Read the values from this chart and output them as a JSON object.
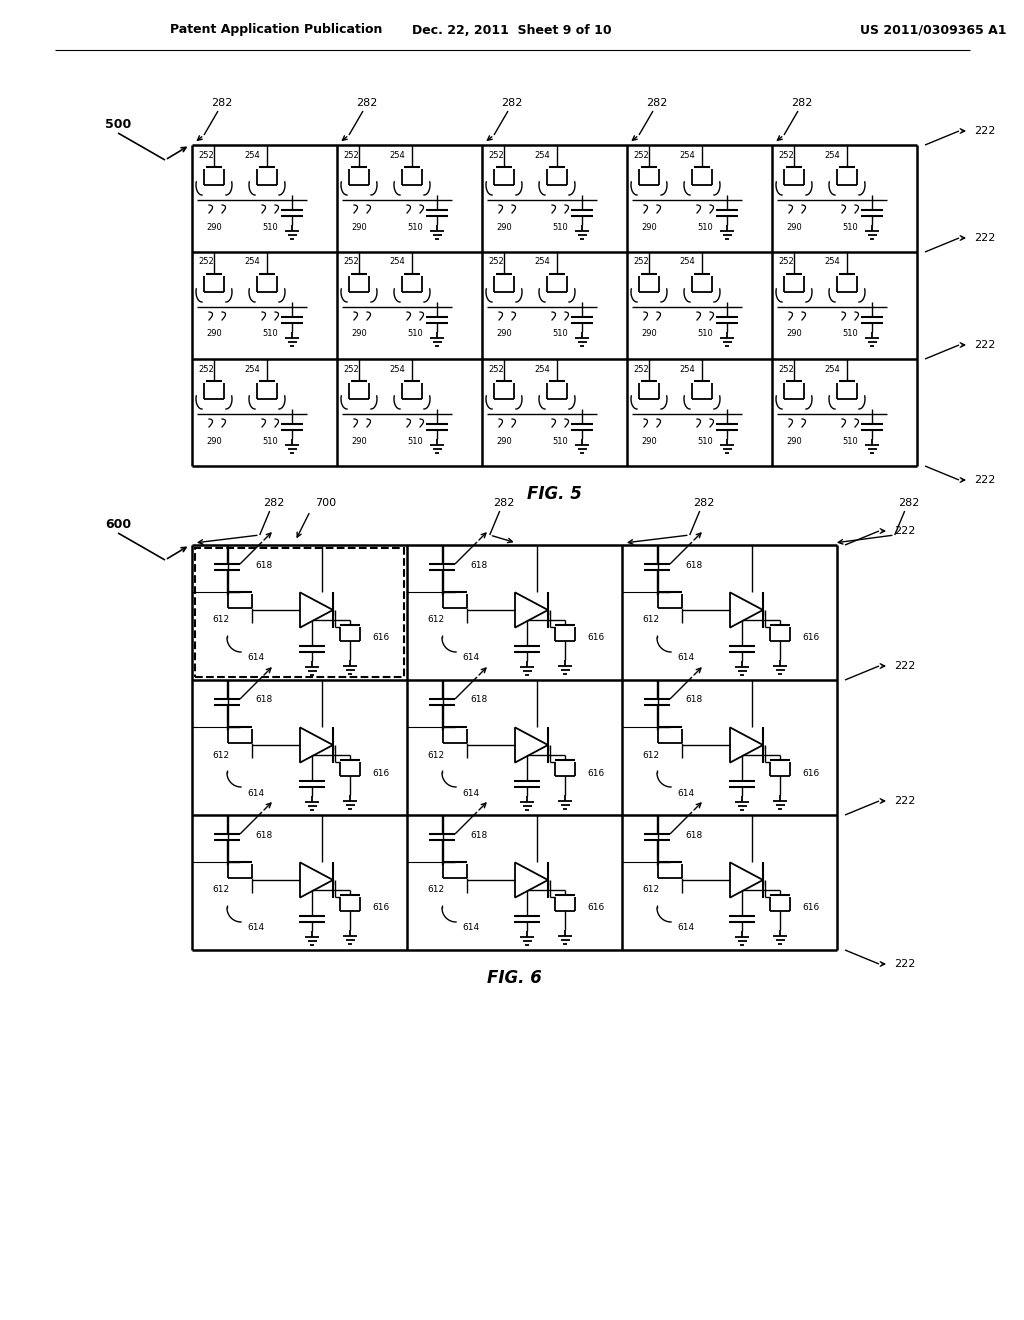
{
  "bg_color": "#ffffff",
  "line_color": "#000000",
  "header_left": "Patent Application Publication",
  "header_mid": "Dec. 22, 2011  Sheet 9 of 10",
  "header_right": "US 2011/0309365 A1",
  "fig5_label": "FIG. 5",
  "fig6_label": "FIG. 6"
}
